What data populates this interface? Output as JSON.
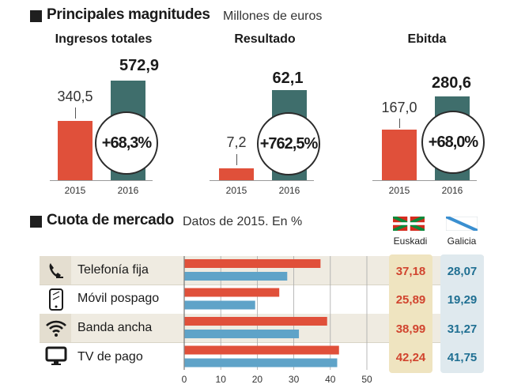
{
  "section1": {
    "title": "Principales magnitudes",
    "subtitle": "Millones de euros",
    "panels": [
      {
        "title": "Ingresos totales",
        "value_2015": "340,5",
        "value_2016": "572,9",
        "change": "+68,3%",
        "year_a": "2015",
        "year_b": "2016"
      },
      {
        "title": "Resultado",
        "value_2015": "7,2",
        "value_2016": "62,1",
        "change": "+762,5%",
        "year_a": "2015",
        "year_b": "2016"
      },
      {
        "title": "Ebitda",
        "value_2015": "167,0",
        "value_2016": "280,6",
        "change": "+68,0%",
        "year_a": "2015",
        "year_b": "2016"
      }
    ]
  },
  "section2": {
    "title": "Cuota de mercado",
    "subtitle": "Datos de 2015. En %",
    "legend": {
      "euskadi": "Euskadi",
      "galicia": "Galicia"
    },
    "rows": [
      {
        "label": "Telefonía fija",
        "icon": "phone-icon",
        "euskadi": "37,18",
        "galicia": "28,07"
      },
      {
        "label": "Móvil pospago",
        "icon": "mobile-icon",
        "euskadi": "25,89",
        "galicia": "19,29"
      },
      {
        "label": "Banda ancha",
        "icon": "wifi-icon",
        "euskadi": "38,99",
        "galicia": "31,27"
      },
      {
        "label": "TV de pago",
        "icon": "tv-icon",
        "euskadi": "42,24",
        "galicia": "41,75"
      }
    ],
    "x_ticks": [
      "0",
      "10",
      "20",
      "30",
      "40",
      "50"
    ]
  },
  "colors": {
    "euskadi": "#e0503a",
    "galicia": "#5fa3c8",
    "highlight_2016": "#3f6e6c"
  },
  "chart_data": [
    {
      "type": "bar",
      "title": "Ingresos totales",
      "categories": [
        "2015",
        "2016"
      ],
      "values": [
        340.5,
        572.9
      ],
      "annotation": "+68,3%"
    },
    {
      "type": "bar",
      "title": "Resultado",
      "categories": [
        "2015",
        "2016"
      ],
      "values": [
        7.2,
        62.1
      ],
      "annotation": "+762,5%"
    },
    {
      "type": "bar",
      "title": "Ebitda",
      "categories": [
        "2015",
        "2016"
      ],
      "values": [
        167.0,
        280.6
      ],
      "annotation": "+68,0%"
    },
    {
      "type": "bar",
      "orientation": "horizontal",
      "title": "Cuota de mercado",
      "subtitle": "Datos de 2015. En %",
      "categories": [
        "Telefonía fija",
        "Móvil pospago",
        "Banda ancha",
        "TV de pago"
      ],
      "series": [
        {
          "name": "Euskadi",
          "values": [
            37.18,
            25.89,
            38.99,
            42.24
          ]
        },
        {
          "name": "Galicia",
          "values": [
            28.07,
            19.29,
            31.27,
            41.75
          ]
        }
      ],
      "xlim": [
        0,
        50
      ]
    }
  ]
}
